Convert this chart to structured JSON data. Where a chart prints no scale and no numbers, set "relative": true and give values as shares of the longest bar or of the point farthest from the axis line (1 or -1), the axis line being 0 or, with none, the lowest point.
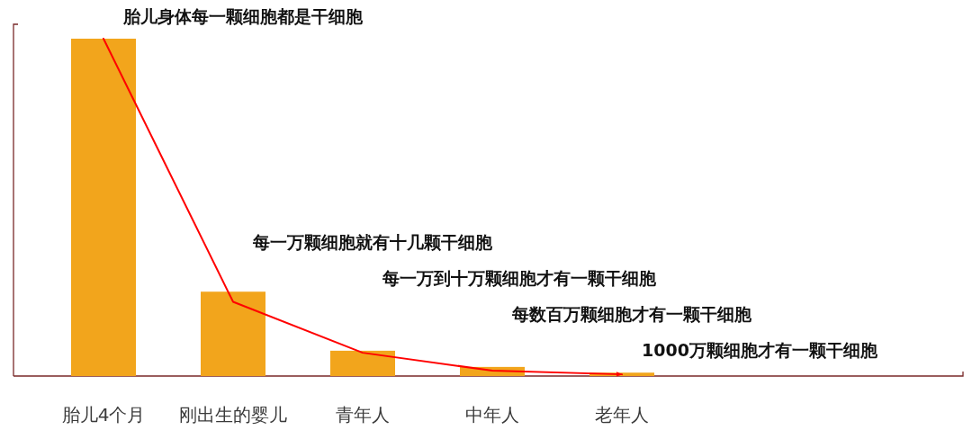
{
  "chart_data": {
    "type": "bar",
    "relative": true,
    "categories": [
      "胎儿4个月",
      "刚出生的婴儿",
      "青年人",
      "中年人",
      "老年人"
    ],
    "series": [
      {
        "color": "#f2a51c",
        "values": [
          1,
          0.25,
          0.075,
          0.027,
          0.01
        ]
      },
      {
        "type": "line",
        "color": "#ff0000",
        "values": [
          1,
          0.22,
          0.069,
          0.016,
          0.005
        ]
      }
    ],
    "annotations": [
      "胎儿身体每一颗细胞都是干细胞",
      "每一万颗细胞就有十几颗干细胞",
      "每一万到十万颗细胞才有一颗干细胞",
      "每数百万颗细胞才有一颗干细胞",
      "1000万颗细胞才有一颗干细胞"
    ]
  }
}
